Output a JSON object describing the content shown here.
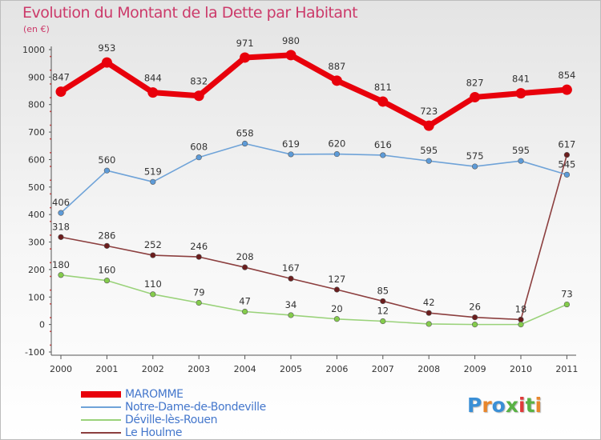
{
  "title": "Evolution du Montant de la Dette par Habitant",
  "subtitle": "(en €)",
  "logo": {
    "text": "Proxiti",
    "letter_colors": [
      "#3a8fd6",
      "#e8862c",
      "#3a8fd6",
      "#59b244",
      "#e03a3a",
      "#59b244",
      "#e8862c"
    ]
  },
  "chart_data": {
    "type": "line",
    "title": "Evolution du Montant de la Dette par Habitant",
    "subtitle": "(en €)",
    "categories": [
      "2000",
      "2001",
      "2002",
      "2003",
      "2004",
      "2005",
      "2006",
      "2007",
      "2008",
      "2009",
      "2010",
      "2011"
    ],
    "yticks": [
      "-100",
      "0",
      "100",
      "200",
      "300",
      "400",
      "500",
      "600",
      "700",
      "800",
      "900",
      "1000"
    ],
    "ylim": [
      -100,
      1000
    ],
    "grid": false,
    "legend_position": "bottom-left",
    "series": [
      {
        "name": "MAROMME",
        "color": "#e8000b",
        "values": [
          847,
          953,
          844,
          832,
          971,
          980,
          887,
          811,
          723,
          827,
          841,
          854
        ],
        "labels": [
          "847",
          "953",
          "844",
          "832",
          "971",
          "980",
          "887",
          "811",
          "723",
          "827",
          "841",
          "854"
        ]
      },
      {
        "name": "Notre-Dame-de-Bondeville",
        "color": "#6fa3d8",
        "marker_color": "#5d9bd8",
        "values": [
          406,
          560,
          519,
          608,
          658,
          619,
          620,
          616,
          595,
          575,
          595,
          545
        ],
        "labels": [
          "406",
          "560",
          "519",
          "608",
          "658",
          "619",
          "620",
          "616",
          "595",
          "575",
          "595",
          "545"
        ]
      },
      {
        "name": "Déville-lès-Rouen",
        "color": "#9ad27a",
        "marker_color": "#84cc4b",
        "values": [
          180,
          160,
          110,
          79,
          47,
          34,
          20,
          12,
          2,
          0,
          0,
          73
        ],
        "labels": [
          "180",
          "160",
          "110",
          "79",
          "47",
          "34",
          "20",
          "12",
          "",
          "",
          "",
          "73"
        ]
      },
      {
        "name": "Le Houlme",
        "color": "#8c3f3f",
        "marker_color": "#6b1d1d",
        "values": [
          318,
          286,
          252,
          246,
          208,
          167,
          127,
          85,
          42,
          26,
          18,
          617
        ],
        "labels": [
          "318",
          "286",
          "252",
          "246",
          "208",
          "167",
          "127",
          "85",
          "42",
          "26",
          "18",
          "617"
        ]
      }
    ]
  }
}
